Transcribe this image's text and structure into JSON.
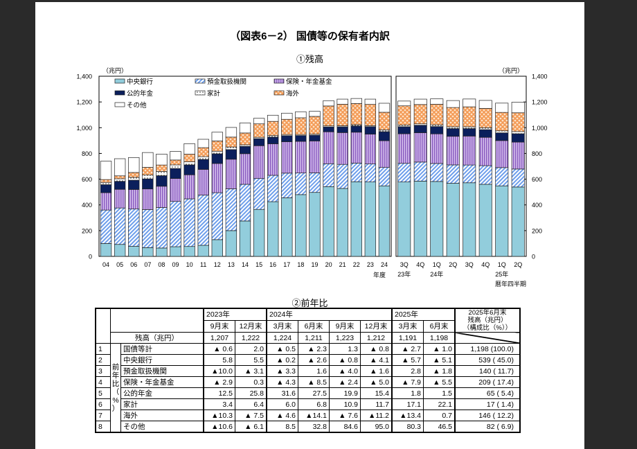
{
  "title": "（図表6－2） 国債等の保有者内訳",
  "chart_data": {
    "type": "bar",
    "stacked": true,
    "title": "①残高",
    "unit_label": "（兆円）",
    "ylim": [
      0,
      1400
    ],
    "yticks": [
      "0",
      "200",
      "400",
      "600",
      "800",
      "1,000",
      "1,200",
      "1,400"
    ],
    "ytick_values": [
      0,
      200,
      400,
      600,
      800,
      1000,
      1200,
      1400
    ],
    "legend_position": "top-left",
    "series_meta": [
      {
        "name": "中央銀行",
        "color": "#92cddc",
        "pattern": "solid"
      },
      {
        "name": "預金取扱機関",
        "color": "#6d9eeb",
        "pattern": "diagonal"
      },
      {
        "name": "保険・年金基金",
        "color": "#9e6fc9",
        "pattern": "vertical"
      },
      {
        "name": "公的年金",
        "color": "#0b1f5c",
        "pattern": "solid"
      },
      {
        "name": "家計",
        "color": "#ffffff",
        "pattern": "dots"
      },
      {
        "name": "海外",
        "color": "#f4a460",
        "pattern": "lattice"
      },
      {
        "name": "その他",
        "color": "#ffffff",
        "pattern": "solid"
      }
    ],
    "panels": [
      {
        "categories": [
          "04",
          "05",
          "06",
          "07",
          "08",
          "09",
          "10",
          "11",
          "12",
          "13",
          "14",
          "15",
          "16",
          "17",
          "18",
          "19",
          "20",
          "21",
          "22",
          "23",
          "24"
        ],
        "xlabel": "年度",
        "series": [
          {
            "name": "中央銀行",
            "values": [
              100,
              93,
              78,
              68,
              65,
              75,
              77,
              86,
              130,
              200,
              275,
              365,
              425,
              455,
              480,
              497,
              542,
              528,
              580,
              578,
              548
            ]
          },
          {
            "name": "預金取扱機関",
            "values": [
              260,
              283,
              290,
              296,
              315,
              352,
              370,
              390,
              365,
              325,
              285,
              240,
              205,
              192,
              168,
              152,
              178,
              187,
              145,
              140,
              143
            ]
          },
          {
            "name": "保険・年金基金",
            "values": [
              135,
              145,
              152,
              160,
              165,
              178,
              187,
              200,
              227,
              230,
              238,
              255,
              245,
              244,
              246,
              248,
              248,
              247,
              240,
              232,
              208
            ]
          },
          {
            "name": "公的年金",
            "values": [
              62,
              62,
              72,
              78,
              82,
              78,
              77,
              77,
              75,
              75,
              57,
              55,
              52,
              47,
              45,
              45,
              38,
              45,
              48,
              58,
              70
            ]
          },
          {
            "name": "家計",
            "values": [
              18,
              20,
              22,
              30,
              33,
              28,
              25,
              22,
              20,
              20,
              12,
              10,
              12,
              9,
              8,
              8,
              8,
              8,
              10,
              8,
              14
            ]
          },
          {
            "name": "海外",
            "values": [
              22,
              23,
              38,
              60,
              50,
              38,
              58,
              70,
              80,
              77,
              92,
              105,
              110,
              118,
              130,
              138,
              155,
              167,
              165,
              165,
              137
            ]
          },
          {
            "name": "その他",
            "values": [
              143,
              133,
              116,
              115,
              85,
              67,
              82,
              65,
              68,
              75,
              78,
              43,
              48,
              48,
              47,
              40,
              41,
              40,
              39,
              41,
              70
            ]
          }
        ]
      },
      {
        "categories": [
          "3Q",
          "4Q",
          "1Q",
          "2Q",
          "3Q",
          "4Q",
          "1Q",
          "2Q"
        ],
        "year_labels": [
          "23年",
          "",
          "24年",
          "",
          "",
          "",
          "25年",
          ""
        ],
        "xlabel": "暦年四半期",
        "unit_label_right": "（兆円）",
        "series": [
          {
            "name": "中央銀行",
            "values": [
              578,
              585,
              582,
              568,
              572,
              560,
              548,
              539
            ]
          },
          {
            "name": "預金取扱機関",
            "values": [
              145,
              148,
              140,
              143,
              138,
              145,
              142,
              140
            ]
          },
          {
            "name": "保険・年金基金",
            "values": [
              230,
              228,
              230,
              222,
              225,
              220,
              210,
              209
            ]
          },
          {
            "name": "公的年金",
            "values": [
              55,
              58,
              57,
              60,
              58,
              60,
              60,
              65
            ]
          },
          {
            "name": "家計",
            "values": [
              12,
              11,
              13,
              14,
              14,
              15,
              16,
              17
            ]
          },
          {
            "name": "海外",
            "values": [
              150,
              150,
              160,
              150,
              155,
              150,
              143,
              146
            ]
          },
          {
            "name": "その他",
            "values": [
              37,
              42,
              42,
              54,
              61,
              62,
              72,
              82
            ]
          }
        ]
      }
    ]
  },
  "table": {
    "title": "②前年比",
    "year_headers": [
      "2023年",
      "2024年",
      "2025年"
    ],
    "month_headers": [
      "9月末",
      "12月末",
      "3月末",
      "6月末",
      "9月末",
      "12月末",
      "3月末",
      "6月末"
    ],
    "last_header": [
      "2025年6月末",
      "残高（兆円）",
      "（構成比（%））"
    ],
    "balance_label": "残高（兆円）",
    "balance_values": [
      "1,207",
      "1,222",
      "1,224",
      "1,211",
      "1,223",
      "1,212",
      "1,191",
      "1,198"
    ],
    "side_label": [
      "前",
      "年",
      "比",
      "（",
      "%",
      "）"
    ],
    "rows": [
      {
        "no": "1",
        "name": "国債等計",
        "values": [
          "▲ 0.6",
          "2.0",
          "▲ 0.5",
          "▲ 2.3",
          "1.3",
          "▲ 0.8",
          "▲ 2.7",
          "▲ 1.0"
        ],
        "last": "1,198 (100.0)"
      },
      {
        "no": "2",
        "name": "中央銀行",
        "values": [
          "5.8",
          "5.5",
          "▲ 0.2",
          "▲ 2.6",
          "▲ 0.8",
          "▲ 4.1",
          "▲ 5.7",
          "▲ 5.1"
        ],
        "last": "539 ( 45.0)"
      },
      {
        "no": "3",
        "name": "預金取扱機関",
        "values": [
          "▲10.0",
          "▲ 3.1",
          "▲ 3.3",
          "1.6",
          "▲ 4.0",
          "▲ 1.6",
          "2.8",
          "▲ 1.8"
        ],
        "last": "140 ( 11.7)"
      },
      {
        "no": "4",
        "name": "保険・年金基金",
        "values": [
          "▲ 2.9",
          "0.3",
          "▲ 4.3",
          "▲ 8.5",
          "▲ 2.4",
          "▲ 5.0",
          "▲ 7.9",
          "▲ 5.5"
        ],
        "last": "209 ( 17.4)"
      },
      {
        "no": "5",
        "name": "公的年金",
        "values": [
          "12.5",
          "25.8",
          "31.6",
          "27.5",
          "19.9",
          "15.4",
          "1.8",
          "1.5"
        ],
        "last": "65 (  5.4)"
      },
      {
        "no": "6",
        "name": "家計",
        "values": [
          "3.4",
          "6.4",
          "6.0",
          "6.8",
          "10.9",
          "11.7",
          "17.1",
          "22.1"
        ],
        "last": "17 (  1.4)"
      },
      {
        "no": "7",
        "name": "海外",
        "values": [
          "▲10.3",
          "▲ 7.5",
          "▲ 4.6",
          "▲14.1",
          "▲ 7.6",
          "▲11.2",
          "▲13.4",
          "0.7"
        ],
        "last": "146 ( 12.2)"
      },
      {
        "no": "8",
        "name": "その他",
        "values": [
          "▲10.6",
          "▲ 6.1",
          "8.5",
          "32.8",
          "84.6",
          "95.0",
          "80.3",
          "46.5"
        ],
        "last": "82 (  6.9)"
      }
    ]
  }
}
